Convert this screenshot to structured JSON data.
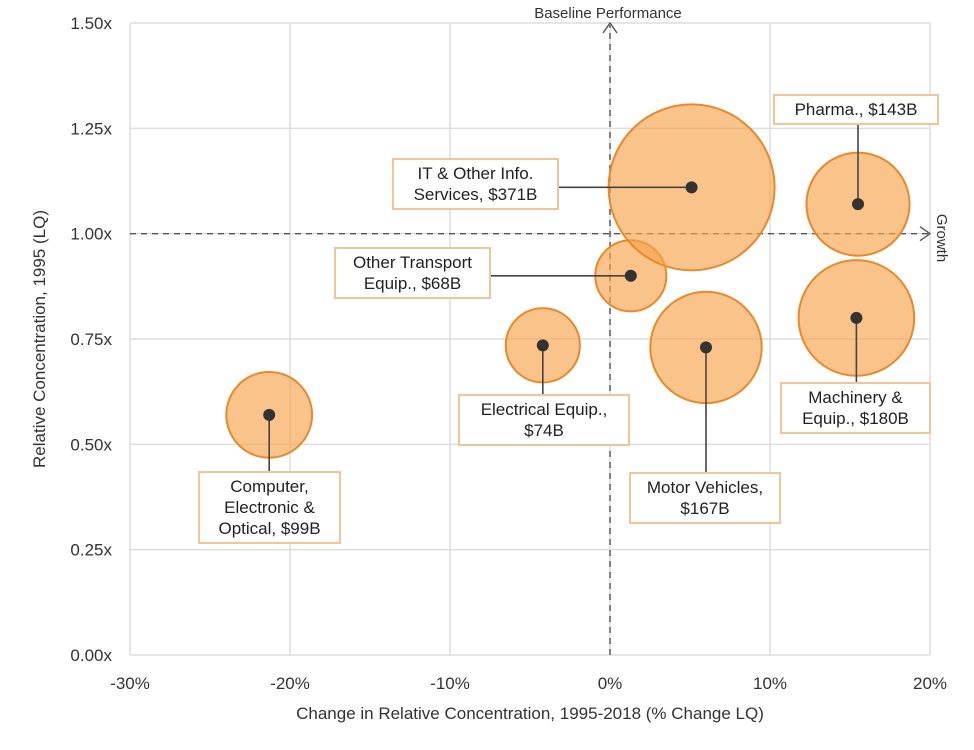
{
  "chart_data": {
    "type": "scatter",
    "subtype": "bubble",
    "title": "",
    "xlabel": "Change in Relative Concentration, 1995-2018 (% Change LQ)",
    "ylabel": "Relative Concentration, 1995 (LQ)",
    "xlim": [
      -30,
      20
    ],
    "ylim": [
      0,
      1.5
    ],
    "xticks": [
      -30,
      -20,
      -10,
      0,
      10,
      20
    ],
    "xtick_labels": [
      "-30%",
      "-20%",
      "-10%",
      "0%",
      "10%",
      "20%"
    ],
    "yticks": [
      0,
      0.25,
      0.5,
      0.75,
      1.0,
      1.25,
      1.5
    ],
    "ytick_labels": [
      "0.00x",
      "0.25x",
      "0.50x",
      "0.75x",
      "1.00x",
      "1.25x",
      "1.50x"
    ],
    "grid": true,
    "reference_lines": [
      {
        "axis": "x",
        "value": 0,
        "label": "Baseline Performance"
      },
      {
        "axis": "y",
        "value": 1.0,
        "label": "Growth"
      }
    ],
    "bubble_color": "#f7a34a",
    "size_unit": "$B",
    "points": [
      {
        "name": "Computer, Electronic & Optical",
        "label": "Computer,\nElectronic &\nOptical, $99B",
        "x": -21.3,
        "y": 0.57,
        "size": 99
      },
      {
        "name": "Electrical Equip.",
        "label": "Electrical Equip.,\n$74B",
        "x": -4.2,
        "y": 0.735,
        "size": 74
      },
      {
        "name": "Other Transport Equip.",
        "label": "Other Transport\nEquip., $68B",
        "x": 1.3,
        "y": 0.9,
        "size": 68
      },
      {
        "name": "IT & Other Info. Services",
        "label": "IT & Other Info.\nServices, $371B",
        "x": 5.1,
        "y": 1.11,
        "size": 371
      },
      {
        "name": "Motor Vehicles",
        "label": "Motor Vehicles,\n$167B",
        "x": 6.0,
        "y": 0.73,
        "size": 167
      },
      {
        "name": "Pharma.",
        "label": "Pharma., $143B",
        "x": 15.5,
        "y": 1.07,
        "size": 143
      },
      {
        "name": "Machinery & Equip.",
        "label": "Machinery &\nEquip., $180B",
        "x": 15.4,
        "y": 0.8,
        "size": 180
      }
    ]
  }
}
